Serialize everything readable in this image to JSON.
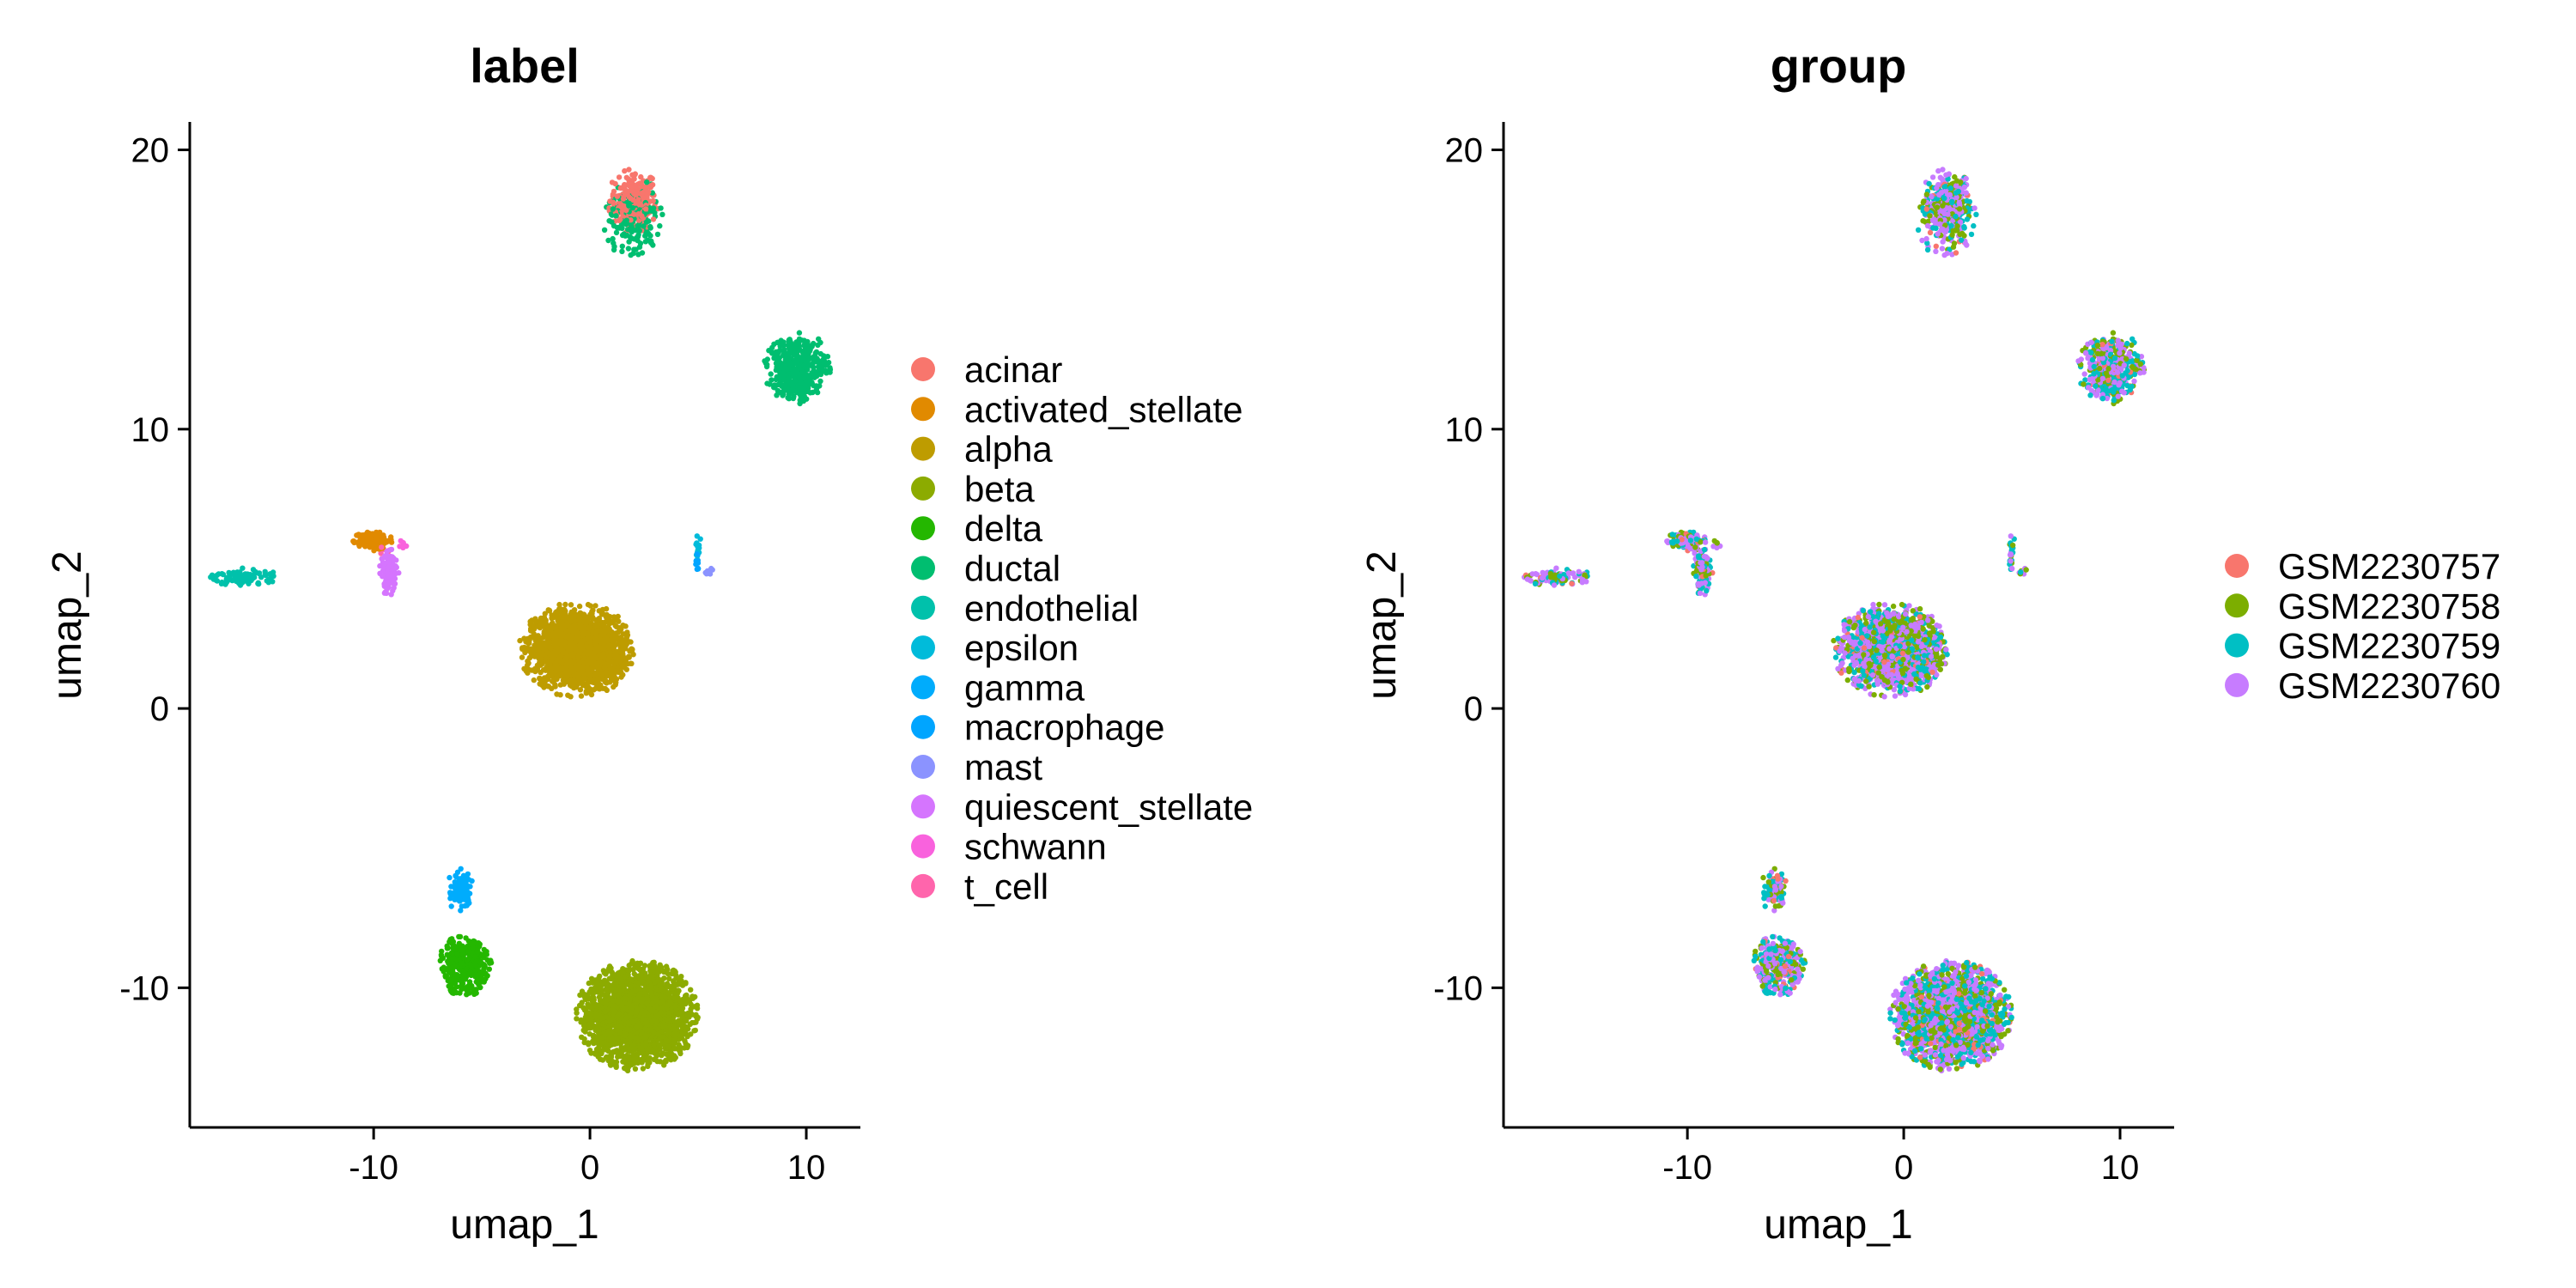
{
  "chart_data": [
    {
      "type": "scatter",
      "title": "label",
      "xlabel": "umap_1",
      "ylabel": "umap_2",
      "xlim": [
        -18.5,
        12.5
      ],
      "ylim": [
        -15,
        21
      ],
      "xticks": [
        -10,
        0,
        10
      ],
      "yticks": [
        -10,
        0,
        10,
        20
      ],
      "grid": false,
      "legend_position": "right",
      "series": [
        {
          "name": "acinar",
          "color": "#F8766D",
          "clusters": [
            {
              "cx": 2.0,
              "cy": 18.2,
              "rx": 1.2,
              "ry": 1.2,
              "n": 230
            }
          ]
        },
        {
          "name": "activated_stellate",
          "color": "#E18A00",
          "clusters": [
            {
              "cx": -10.0,
              "cy": 6.0,
              "rx": 1.0,
              "ry": 0.35,
              "n": 120
            }
          ]
        },
        {
          "name": "alpha",
          "color": "#BE9C00",
          "clusters": [
            {
              "cx": -0.6,
              "cy": 2.1,
              "rx": 2.7,
              "ry": 1.7,
              "n": 1700
            }
          ]
        },
        {
          "name": "beta",
          "color": "#8CAB00",
          "clusters": [
            {
              "cx": 2.2,
              "cy": -11.0,
              "rx": 2.9,
              "ry": 2.0,
              "n": 2100
            }
          ]
        },
        {
          "name": "delta",
          "color": "#24B700",
          "clusters": [
            {
              "cx": -5.8,
              "cy": -9.2,
              "rx": 1.3,
              "ry": 1.1,
              "n": 380
            }
          ]
        },
        {
          "name": "ductal",
          "color": "#00BE70",
          "clusters": [
            {
              "cx": 9.6,
              "cy": 12.2,
              "rx": 1.6,
              "ry": 1.3,
              "n": 430
            },
            {
              "cx": 2.0,
              "cy": 17.5,
              "rx": 1.4,
              "ry": 1.6,
              "n": 170
            }
          ]
        },
        {
          "name": "endothelial",
          "color": "#00C1AB",
          "clusters": [
            {
              "cx": -16.0,
              "cy": 4.7,
              "rx": 1.6,
              "ry": 0.35,
              "n": 120
            }
          ]
        },
        {
          "name": "epsilon",
          "color": "#00BBDA",
          "clusters": [
            {
              "cx": 5.0,
              "cy": 5.7,
              "rx": 0.15,
              "ry": 0.6,
              "n": 15
            }
          ]
        },
        {
          "name": "gamma",
          "color": "#00ACFC",
          "clusters": [
            {
              "cx": -6.0,
              "cy": -6.5,
              "rx": 0.6,
              "ry": 0.8,
              "n": 100
            }
          ]
        },
        {
          "name": "macrophage",
          "color": "#00A5FF",
          "clusters": [
            {
              "cx": 5.0,
              "cy": 5.3,
              "rx": 0.2,
              "ry": 0.4,
              "n": 12
            }
          ]
        },
        {
          "name": "mast",
          "color": "#8B93FF",
          "clusters": [
            {
              "cx": 5.5,
              "cy": 4.9,
              "rx": 0.3,
              "ry": 0.2,
              "n": 8
            }
          ]
        },
        {
          "name": "quiescent_stellate",
          "color": "#D575FE",
          "clusters": [
            {
              "cx": -9.3,
              "cy": 4.9,
              "rx": 0.5,
              "ry": 0.9,
              "n": 110
            }
          ]
        },
        {
          "name": "schwann",
          "color": "#F962DD",
          "clusters": [
            {
              "cx": -8.7,
              "cy": 5.9,
              "rx": 0.3,
              "ry": 0.2,
              "n": 6
            }
          ]
        },
        {
          "name": "t_cell",
          "color": "#FF65AC",
          "clusters": [
            {
              "cx": -9.5,
              "cy": 5.6,
              "rx": 0.3,
              "ry": 0.2,
              "n": 5
            }
          ]
        }
      ]
    },
    {
      "type": "scatter",
      "title": "group",
      "xlabel": "umap_1",
      "ylabel": "umap_2",
      "xlim": [
        -18.5,
        12.5
      ],
      "ylim": [
        -15,
        21
      ],
      "xticks": [
        -10,
        0,
        10
      ],
      "yticks": [
        -10,
        0,
        10,
        20
      ],
      "grid": false,
      "legend_position": "right",
      "series": [
        {
          "name": "GSM2230757",
          "color": "#F8766D",
          "share": 0.04
        },
        {
          "name": "GSM2230758",
          "color": "#7CAE00",
          "share": 0.26
        },
        {
          "name": "GSM2230759",
          "color": "#00BFC4",
          "share": 0.3
        },
        {
          "name": "GSM2230760",
          "color": "#C77CFF",
          "share": 0.4
        }
      ]
    }
  ]
}
